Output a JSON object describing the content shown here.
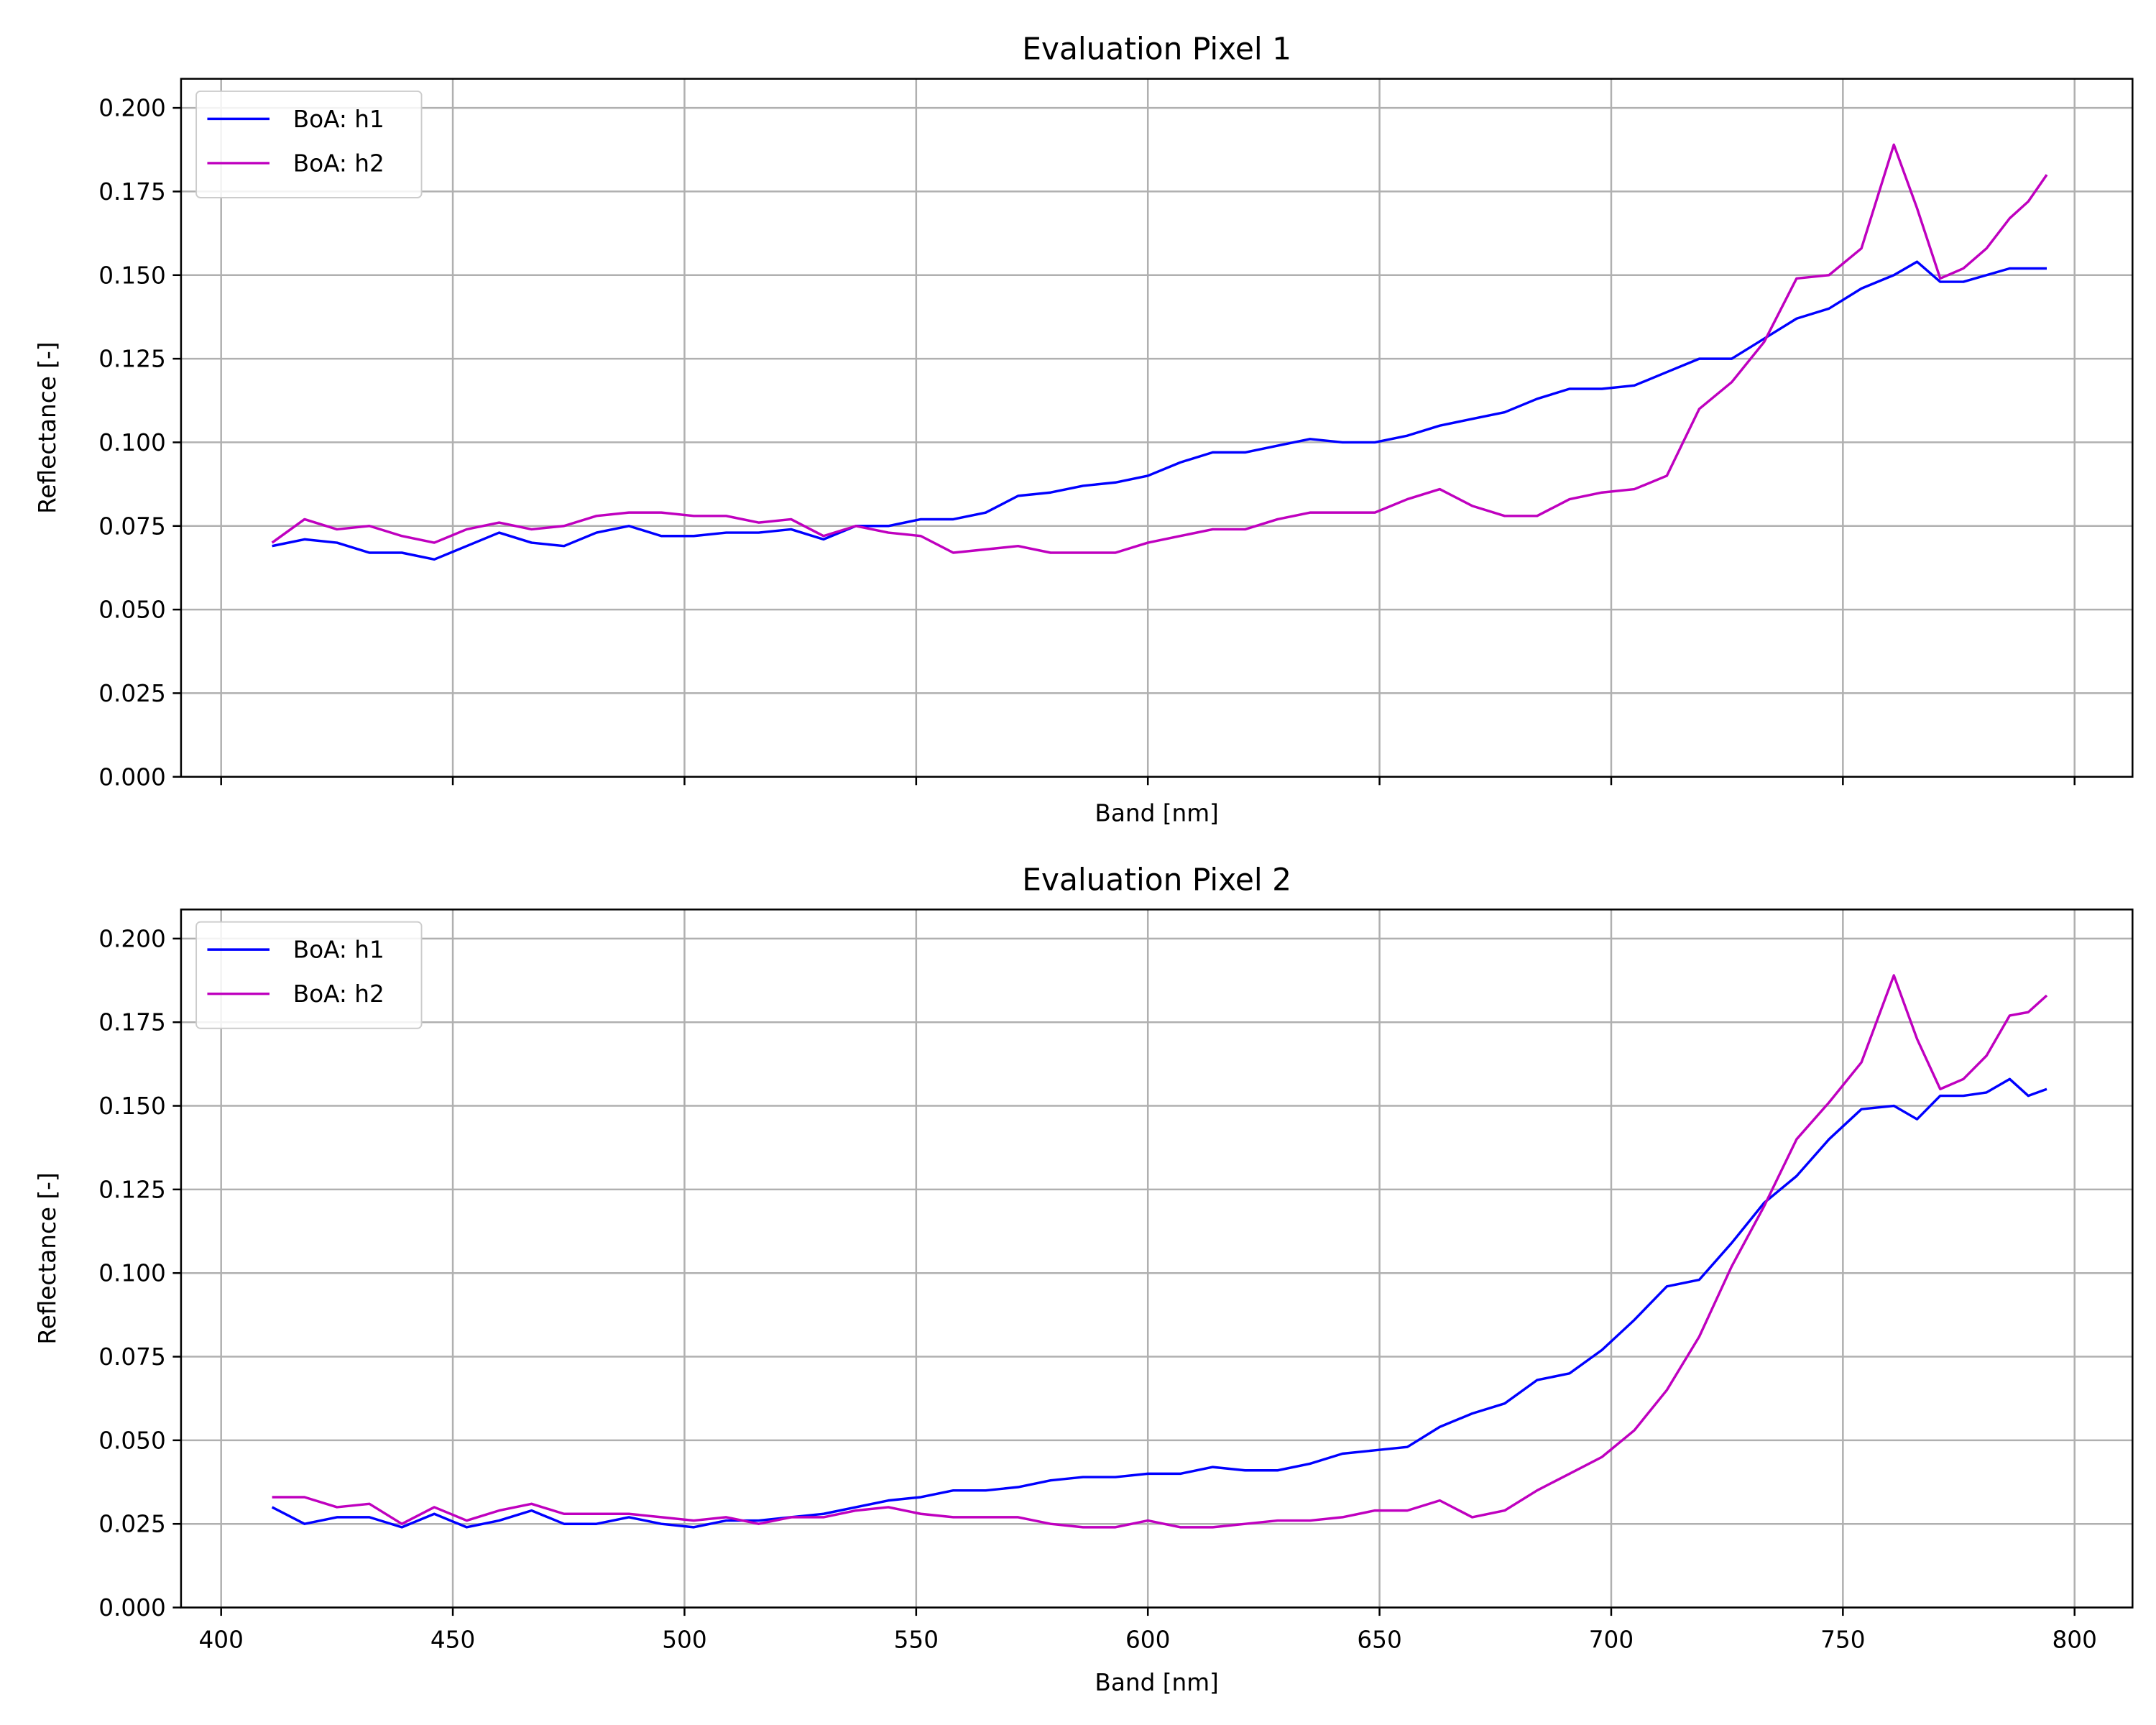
{
  "chart_data": [
    {
      "type": "line",
      "title": "Evaluation Pixel 1",
      "x_label": "Band [nm]",
      "y_label": "Reflectance [-]",
      "x": [
        411,
        418,
        425,
        432,
        439,
        446,
        453,
        460,
        467,
        474,
        481,
        488,
        495,
        502,
        509,
        516,
        523,
        530,
        537,
        544,
        551,
        558,
        565,
        572,
        579,
        586,
        593,
        600,
        607,
        614,
        621,
        628,
        635,
        642,
        649,
        656,
        663,
        670,
        677,
        684,
        691,
        698,
        705,
        712,
        719,
        726,
        733,
        740,
        747,
        754,
        761,
        766,
        771,
        776,
        781,
        786,
        790,
        794
      ],
      "series": [
        {
          "name": "BoA: h1",
          "color": "#0000ff",
          "values": [
            0.069,
            0.071,
            0.07,
            0.067,
            0.067,
            0.065,
            0.069,
            0.073,
            0.07,
            0.069,
            0.073,
            0.075,
            0.072,
            0.072,
            0.073,
            0.073,
            0.074,
            0.071,
            0.075,
            0.075,
            0.077,
            0.077,
            0.079,
            0.084,
            0.085,
            0.087,
            0.088,
            0.09,
            0.094,
            0.097,
            0.097,
            0.099,
            0.101,
            0.1,
            0.1,
            0.102,
            0.105,
            0.107,
            0.109,
            0.113,
            0.116,
            0.116,
            0.117,
            0.121,
            0.125,
            0.125,
            0.131,
            0.137,
            0.14,
            0.146,
            0.15,
            0.154,
            0.148,
            0.148,
            0.15,
            0.152,
            0.152,
            0.152
          ]
        },
        {
          "name": "BoA: h2",
          "color": "#bf00bf",
          "values": [
            0.07,
            0.077,
            0.074,
            0.075,
            0.072,
            0.07,
            0.074,
            0.076,
            0.074,
            0.075,
            0.078,
            0.079,
            0.079,
            0.078,
            0.078,
            0.076,
            0.077,
            0.072,
            0.075,
            0.073,
            0.072,
            0.067,
            0.068,
            0.069,
            0.067,
            0.067,
            0.067,
            0.07,
            0.072,
            0.074,
            0.074,
            0.077,
            0.079,
            0.079,
            0.079,
            0.083,
            0.086,
            0.081,
            0.078,
            0.078,
            0.083,
            0.085,
            0.086,
            0.09,
            0.11,
            0.118,
            0.13,
            0.149,
            0.15,
            0.158,
            0.189,
            0.17,
            0.149,
            0.152,
            0.158,
            0.167,
            0.172,
            0.18
          ]
        }
      ],
      "xlim": [
        391.35,
        812.5
      ],
      "xticks": [
        400,
        450,
        500,
        550,
        600,
        650,
        700,
        750,
        800
      ],
      "show_xtick_labels": false,
      "ylim": [
        0,
        0.2087
      ],
      "yticks": [
        {
          "value": 0,
          "label": "0.000"
        },
        0.025,
        {
          "value": 0.05,
          "label": "0.050"
        },
        0.075,
        {
          "value": 0.1,
          "label": "0.100"
        },
        0.125,
        {
          "value": 0.15,
          "label": "0.150"
        },
        0.175,
        {
          "value": 0.2,
          "label": "0.200"
        }
      ],
      "grid": true,
      "legend": "upper-left"
    },
    {
      "type": "line",
      "title": "Evaluation Pixel 2",
      "x_label": "Band [nm]",
      "y_label": "Reflectance [-]",
      "x": [
        411,
        418,
        425,
        432,
        439,
        446,
        453,
        460,
        467,
        474,
        481,
        488,
        495,
        502,
        509,
        516,
        523,
        530,
        537,
        544,
        551,
        558,
        565,
        572,
        579,
        586,
        593,
        600,
        607,
        614,
        621,
        628,
        635,
        642,
        649,
        656,
        663,
        670,
        677,
        684,
        691,
        698,
        705,
        712,
        719,
        726,
        733,
        740,
        747,
        754,
        761,
        766,
        771,
        776,
        781,
        786,
        790,
        794
      ],
      "series": [
        {
          "name": "BoA: h1",
          "color": "#0000ff",
          "values": [
            0.03,
            0.025,
            0.027,
            0.027,
            0.024,
            0.028,
            0.024,
            0.026,
            0.029,
            0.025,
            0.025,
            0.027,
            0.025,
            0.024,
            0.026,
            0.026,
            0.027,
            0.028,
            0.03,
            0.032,
            0.033,
            0.035,
            0.035,
            0.036,
            0.038,
            0.039,
            0.039,
            0.04,
            0.04,
            0.042,
            0.041,
            0.041,
            0.043,
            0.046,
            0.047,
            0.048,
            0.054,
            0.058,
            0.061,
            0.068,
            0.07,
            0.077,
            0.086,
            0.096,
            0.098,
            0.109,
            0.121,
            0.129,
            0.14,
            0.149,
            0.15,
            0.146,
            0.153,
            0.153,
            0.154,
            0.158,
            0.153,
            0.155
          ]
        },
        {
          "name": "BoA: h2",
          "color": "#bf00bf",
          "values": [
            0.033,
            0.033,
            0.03,
            0.031,
            0.025,
            0.03,
            0.026,
            0.029,
            0.031,
            0.028,
            0.028,
            0.028,
            0.027,
            0.026,
            0.027,
            0.025,
            0.027,
            0.027,
            0.029,
            0.03,
            0.028,
            0.027,
            0.027,
            0.027,
            0.025,
            0.024,
            0.024,
            0.026,
            0.024,
            0.024,
            0.025,
            0.026,
            0.026,
            0.027,
            0.029,
            0.029,
            0.032,
            0.027,
            0.029,
            0.035,
            0.04,
            0.045,
            0.053,
            0.065,
            0.081,
            0.102,
            0.12,
            0.14,
            0.151,
            0.163,
            0.189,
            0.17,
            0.155,
            0.158,
            0.165,
            0.177,
            0.178,
            0.183
          ]
        }
      ],
      "xlim": [
        391.35,
        812.5
      ],
      "xticks": [
        400,
        450,
        500,
        550,
        600,
        650,
        700,
        750,
        800
      ],
      "show_xtick_labels": true,
      "ylim": [
        0,
        0.2087
      ],
      "yticks": [
        {
          "value": 0,
          "label": "0.000"
        },
        0.025,
        {
          "value": 0.05,
          "label": "0.050"
        },
        0.075,
        {
          "value": 0.1,
          "label": "0.100"
        },
        0.125,
        {
          "value": 0.15,
          "label": "0.150"
        },
        0.175,
        {
          "value": 0.2,
          "label": "0.200"
        }
      ],
      "grid": true,
      "legend": "upper-left"
    }
  ]
}
